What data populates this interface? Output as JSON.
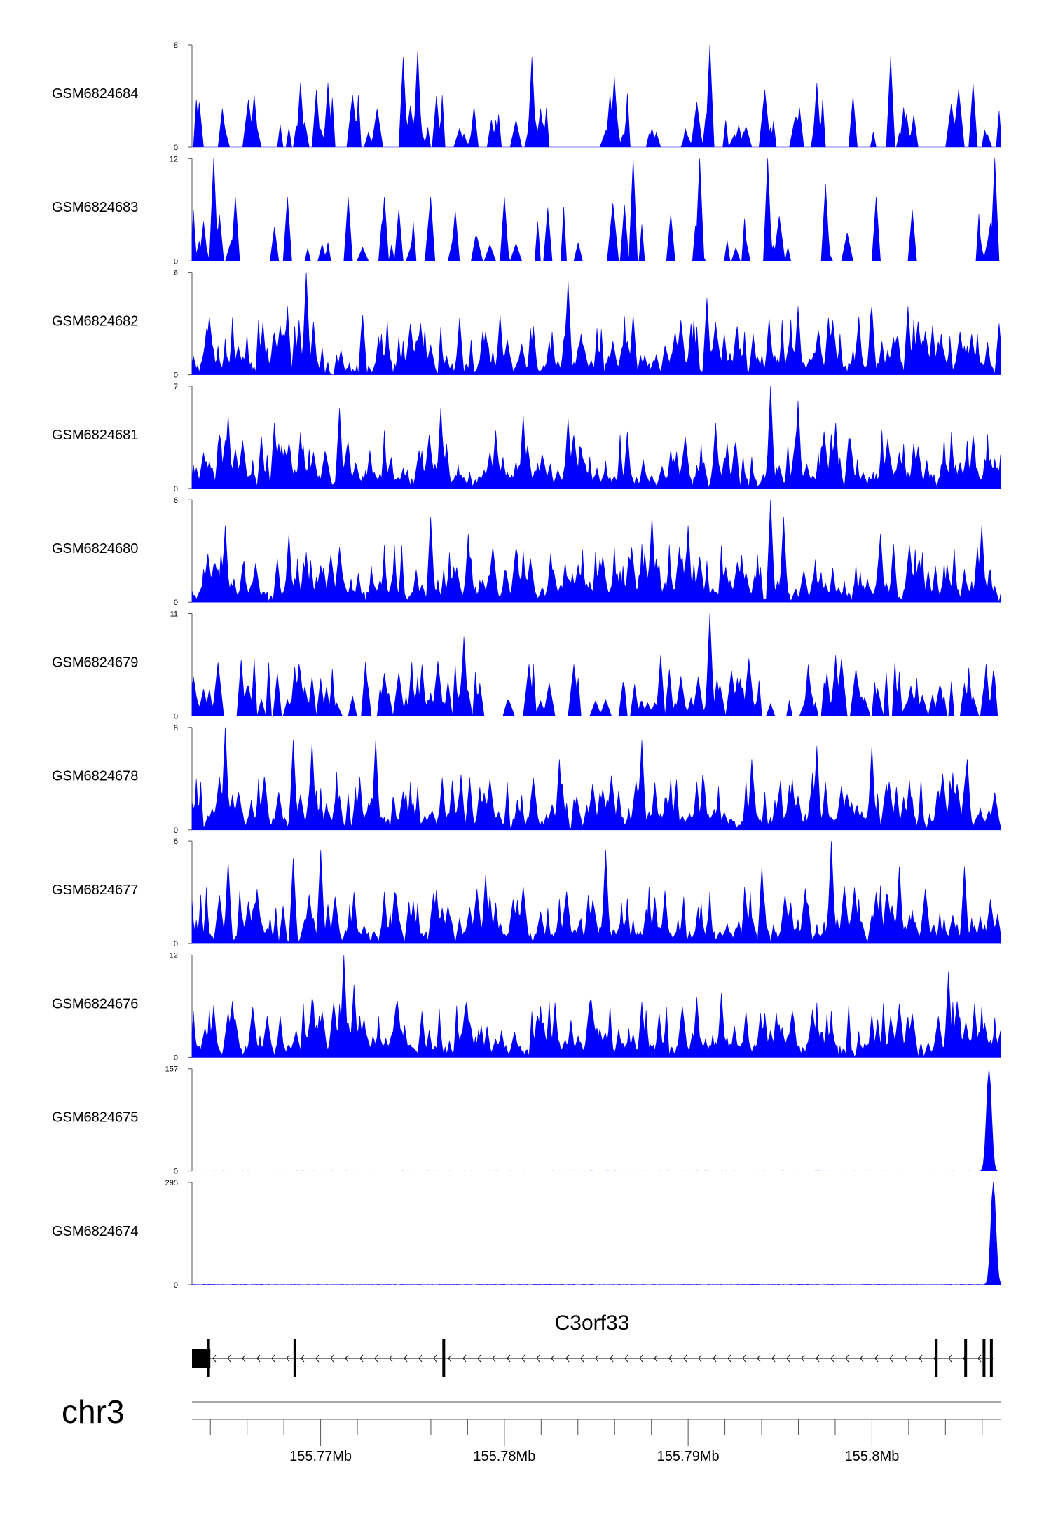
{
  "chart_data": {
    "type": "area",
    "region": {
      "chrom": "chr3",
      "start": 155763000,
      "end": 155807000
    },
    "colors": {
      "signal": "#0000ff",
      "gene": "#000000",
      "axis": "#555555"
    },
    "tracks": [
      {
        "name": "GSM6824684",
        "ymin": "0",
        "ymax": "8",
        "max": 8,
        "pattern": "sparse",
        "peaks": [
          [
            155768900,
            5
          ],
          [
            155770400,
            5
          ],
          [
            155774500,
            7
          ],
          [
            155775300,
            7.5
          ],
          [
            155776300,
            4
          ],
          [
            155781500,
            7
          ],
          [
            155786000,
            5.5
          ],
          [
            155791200,
            8
          ],
          [
            155797000,
            5
          ],
          [
            155801000,
            7
          ],
          [
            155805500,
            5
          ]
        ]
      },
      {
        "name": "GSM6824683",
        "ymin": "0",
        "ymax": "12",
        "max": 12,
        "pattern": "gaps",
        "peaks": [
          [
            155764200,
            12
          ],
          [
            155765400,
            7.5
          ],
          [
            155768200,
            7.5
          ],
          [
            155771500,
            7.5
          ],
          [
            155773500,
            7.5
          ],
          [
            155776000,
            7.5
          ],
          [
            155780000,
            7.5
          ],
          [
            155787000,
            12
          ],
          [
            155790600,
            12
          ],
          [
            155794300,
            12
          ],
          [
            155797500,
            9
          ],
          [
            155800200,
            7.5
          ],
          [
            155806700,
            12
          ]
        ]
      },
      {
        "name": "GSM6824682",
        "ymin": "0",
        "ymax": "6",
        "max": 6,
        "pattern": "dense",
        "peaks": [
          [
            155768200,
            4
          ],
          [
            155769200,
            6
          ],
          [
            155772300,
            3.5
          ],
          [
            155779800,
            3.5
          ],
          [
            155783500,
            5.5
          ],
          [
            155787000,
            3.5
          ],
          [
            155791000,
            4.5
          ],
          [
            155796000,
            4
          ],
          [
            155800000,
            4
          ],
          [
            155802000,
            4
          ]
        ]
      },
      {
        "name": "GSM6824681",
        "ymin": "0",
        "ymax": "7",
        "max": 7,
        "pattern": "dense",
        "peaks": [
          [
            155765000,
            5
          ],
          [
            155767500,
            4.5
          ],
          [
            155771000,
            5.5
          ],
          [
            155776500,
            5.5
          ],
          [
            155781000,
            5
          ],
          [
            155783500,
            4.8
          ],
          [
            155791500,
            4.5
          ],
          [
            155794500,
            7
          ],
          [
            155796000,
            6
          ],
          [
            155798000,
            4.5
          ]
        ]
      },
      {
        "name": "GSM6824680",
        "ymin": "0",
        "ymax": "6",
        "max": 6,
        "pattern": "dense",
        "peaks": [
          [
            155764800,
            4.5
          ],
          [
            155768300,
            4
          ],
          [
            155776000,
            5
          ],
          [
            155778000,
            4
          ],
          [
            155788000,
            5
          ],
          [
            155790000,
            4.5
          ],
          [
            155794500,
            6
          ],
          [
            155795200,
            5
          ],
          [
            155800500,
            4
          ],
          [
            155806000,
            4.5
          ]
        ]
      },
      {
        "name": "GSM6824679",
        "ymin": "0",
        "ymax": "11",
        "max": 11,
        "pattern": "medium",
        "peaks": [
          [
            155770000,
            4
          ],
          [
            155775500,
            5.5
          ],
          [
            155777800,
            8.5
          ],
          [
            155788500,
            6.5
          ],
          [
            155791200,
            11
          ],
          [
            155796500,
            5.5
          ],
          [
            155798000,
            6.5
          ],
          [
            155805000,
            3.5
          ]
        ]
      },
      {
        "name": "GSM6824678",
        "ymin": "0",
        "ymax": "8",
        "max": 8,
        "pattern": "dense",
        "peaks": [
          [
            155764800,
            8
          ],
          [
            155768500,
            7
          ],
          [
            155769500,
            6.8
          ],
          [
            155773000,
            7
          ],
          [
            155783000,
            5.5
          ],
          [
            155787500,
            7
          ],
          [
            155793500,
            5.5
          ],
          [
            155797000,
            6.5
          ],
          [
            155800000,
            6.5
          ],
          [
            155805200,
            5.5
          ]
        ]
      },
      {
        "name": "GSM6824677",
        "ymin": "0",
        "ymax": "6",
        "max": 6,
        "pattern": "dense",
        "peaks": [
          [
            155765000,
            4.8
          ],
          [
            155768500,
            5
          ],
          [
            155770000,
            5.5
          ],
          [
            155779000,
            4
          ],
          [
            155785500,
            5.5
          ],
          [
            155794000,
            4.5
          ],
          [
            155797800,
            6
          ],
          [
            155801500,
            4.5
          ],
          [
            155805000,
            4.5
          ]
        ]
      },
      {
        "name": "GSM6824676",
        "ymin": "0",
        "ymax": "12",
        "max": 12,
        "pattern": "dense",
        "peaks": [
          [
            155769500,
            7
          ],
          [
            155771300,
            12
          ],
          [
            155771800,
            8.5
          ],
          [
            155782000,
            6
          ],
          [
            155787500,
            6.5
          ],
          [
            155790500,
            7
          ],
          [
            155791800,
            7.5
          ],
          [
            155800000,
            5
          ],
          [
            155804200,
            10
          ]
        ]
      },
      {
        "name": "GSM6824675",
        "ymin": "0",
        "ymax": "157",
        "max": 157,
        "pattern": "flat",
        "peaks": [
          [
            155806400,
            157
          ]
        ]
      },
      {
        "name": "GSM6824674",
        "ymin": "0",
        "ymax": "295",
        "max": 295,
        "pattern": "flat",
        "peaks": [
          [
            155806600,
            295
          ]
        ]
      }
    ],
    "gene": {
      "name": "C3orf33",
      "strand": "-",
      "start": 155763000,
      "end": 155806600,
      "utr": [
        155763000,
        155764000
      ],
      "exons": [
        155763900,
        155768600,
        155776700,
        155803500,
        155805100,
        155806100,
        155806500
      ]
    },
    "chrom_label": "chr3",
    "axis": {
      "major_ticks": [
        155770000,
        155780000,
        155790000,
        155800000
      ],
      "tick_labels": [
        "155.77Mb",
        "155.78Mb",
        "155.79Mb",
        "155.8Mb"
      ],
      "minor_ticks": [
        155764000,
        155766000,
        155768000,
        155772000,
        155774000,
        155776000,
        155778000,
        155782000,
        155784000,
        155786000,
        155788000,
        155792000,
        155794000,
        155796000,
        155798000,
        155802000,
        155804000,
        155806000
      ]
    }
  }
}
